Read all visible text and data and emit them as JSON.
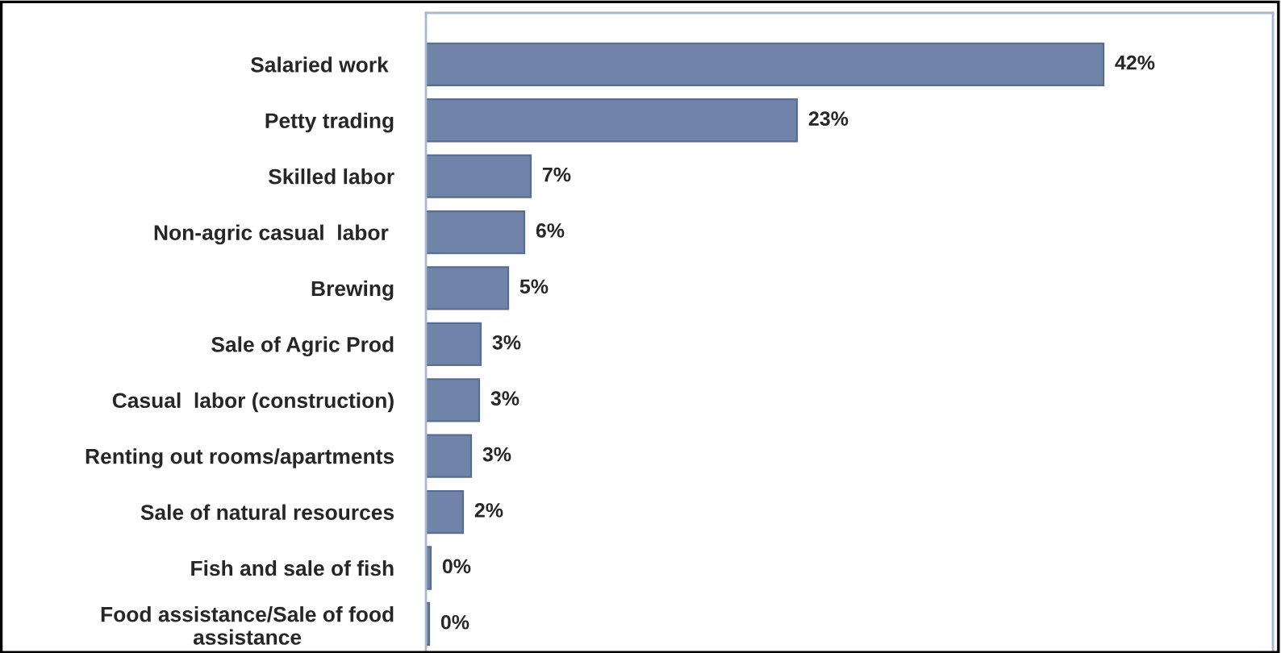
{
  "chart_data": {
    "type": "bar",
    "orientation": "horizontal",
    "categories": [
      "Salaried work ",
      "Petty trading",
      "Skilled labor",
      "Non-agric casual  labor ",
      "Brewing",
      "Sale of Agric Prod",
      "Casual  labor (construction)",
      "Renting out rooms/apartments",
      "Sale of natural resources",
      "Fish and sale of fish",
      "Food assistance/Sale of food\nassistance"
    ],
    "values": [
      42,
      23,
      6.5,
      6.1,
      5.1,
      3.4,
      3.3,
      2.8,
      2.3,
      0.3,
      0.2
    ],
    "value_labels": [
      "42%",
      "23%",
      "7%",
      "6%",
      "5%",
      "3%",
      "3%",
      "3%",
      "2%",
      "0%",
      "0%"
    ],
    "color": "#6f84a8",
    "grid": false,
    "legend": false
  }
}
